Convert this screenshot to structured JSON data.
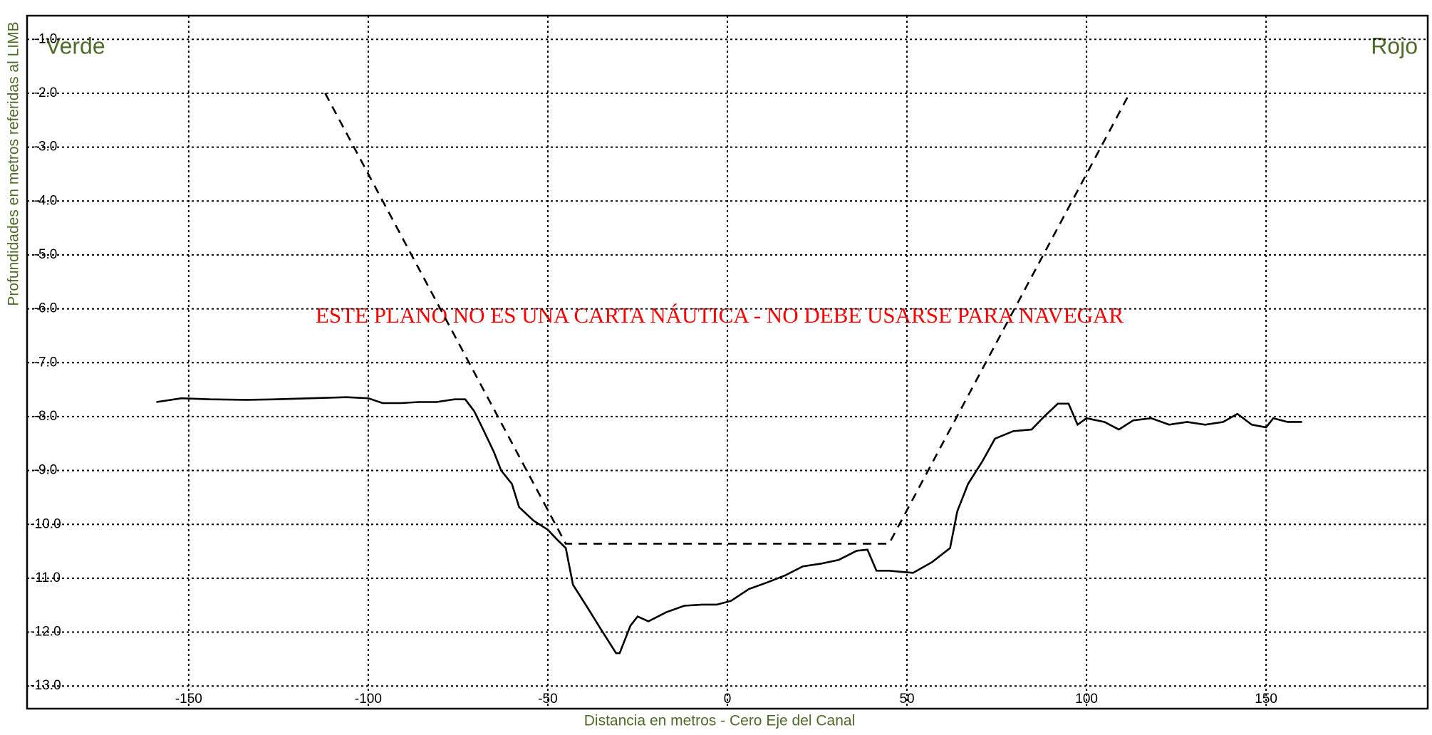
{
  "chart_data": {
    "type": "line",
    "xlabel": "Distancia en metros - Cero Eje del Canal",
    "ylabel": "Profundidades en metros referidas al LIMB",
    "annotations": [
      "Verde",
      "Rojo",
      "ESTE PLANO NO ES UNA CARTA NÁUTICA - NO DEBE USARSE PARA NAVEGAR"
    ],
    "xlim": [
      -195,
      195
    ],
    "xticks": [
      -150,
      -100,
      -50,
      0,
      50,
      100,
      150
    ],
    "ylim": [
      -13.42,
      -0.56
    ],
    "yticks": [
      {
        "value": -1,
        "label": "-1.0"
      },
      {
        "value": -2,
        "label": "-2.0"
      },
      {
        "value": -3,
        "label": "-3.0"
      },
      {
        "value": -4,
        "label": "-4.0"
      },
      {
        "value": -5,
        "label": "-5.0"
      },
      {
        "value": -6,
        "label": "-6.0"
      },
      {
        "value": -7,
        "label": "-7.0"
      },
      {
        "value": -8,
        "label": "-8.0"
      },
      {
        "value": -9,
        "label": "-9.0"
      },
      {
        "value": -10,
        "label": "-10.0"
      },
      {
        "value": -11,
        "label": "-11.0"
      },
      {
        "value": -12,
        "label": "-12.0"
      },
      {
        "value": -13,
        "label": "-13.0"
      }
    ],
    "grid": true,
    "series": [
      {
        "color": "#000000",
        "dash": false,
        "x": [
          -159,
          -152,
          -144,
          -134,
          -126,
          -116,
          -106,
          -100,
          -96,
          -91,
          -86,
          -81,
          -76,
          -73,
          -70.5,
          -68,
          -65,
          -63,
          -60,
          -58,
          -54,
          -50,
          -47.6,
          -45,
          -43,
          -39,
          -35,
          -31,
          -30,
          -27,
          -25,
          -22,
          -17,
          -12,
          -7,
          -3,
          1,
          6,
          11,
          16,
          21,
          26,
          31,
          36,
          39,
          41.5,
          45,
          51.7,
          57,
          62,
          64,
          67,
          71,
          74.5,
          79.6,
          84.7,
          88.5,
          92,
          95,
          97.5,
          100,
          105,
          109,
          113,
          118,
          123,
          128,
          133,
          138,
          142,
          146,
          150,
          152,
          156,
          160
        ],
        "values": [
          -7.73,
          -7.66,
          -7.68,
          -7.69,
          -7.68,
          -7.66,
          -7.64,
          -7.66,
          -7.75,
          -7.75,
          -7.73,
          -7.73,
          -7.68,
          -7.68,
          -7.9,
          -8.24,
          -8.66,
          -9.0,
          -9.25,
          -9.68,
          -9.93,
          -10.1,
          -10.27,
          -10.44,
          -11.12,
          -11.54,
          -11.97,
          -12.39,
          -12.39,
          -11.88,
          -11.71,
          -11.8,
          -11.63,
          -11.51,
          -11.49,
          -11.49,
          -11.42,
          -11.2,
          -11.08,
          -10.95,
          -10.78,
          -10.73,
          -10.66,
          -10.49,
          -10.47,
          -10.86,
          -10.86,
          -10.9,
          -10.7,
          -10.44,
          -9.76,
          -9.25,
          -8.83,
          -8.41,
          -8.27,
          -8.24,
          -7.98,
          -7.76,
          -7.76,
          -8.15,
          -8.03,
          -8.1,
          -8.24,
          -8.07,
          -8.03,
          -8.15,
          -8.1,
          -8.15,
          -8.1,
          -7.95,
          -8.15,
          -8.2,
          -8.03,
          -8.1,
          -8.1
        ]
      },
      {
        "color": "#000000",
        "dash": true,
        "x": [
          -112,
          -45,
          45,
          112
        ],
        "values": [
          -2,
          -10.36,
          -10.36,
          -2
        ]
      }
    ]
  }
}
